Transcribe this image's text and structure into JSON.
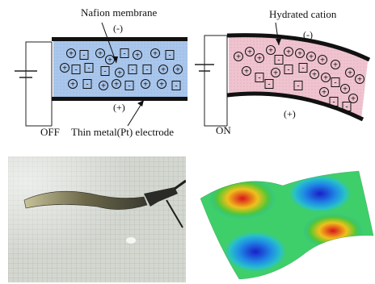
{
  "off_panel": {
    "membrane_label": "Nafion membrane",
    "electrode_label": "Thin metal(Pt) electrode",
    "state_label": "OFF",
    "top_charge": "(-)",
    "bottom_charge": "(+)"
  },
  "on_panel": {
    "cation_label": "Hydrated cation",
    "state_label": "ON",
    "top_charge": "(-)",
    "bottom_charge": "(+)"
  },
  "symbols": {
    "cation": "+",
    "anion": "-"
  },
  "colors": {
    "membrane_off": "#a9c6ec",
    "membrane_on": "#efc3cf",
    "electrode": "#111111",
    "photo_bg": "#d3d7d0",
    "grid": "#aab0a8"
  },
  "surface_plot": {
    "type": "3d-surface",
    "colormap": "jet"
  }
}
